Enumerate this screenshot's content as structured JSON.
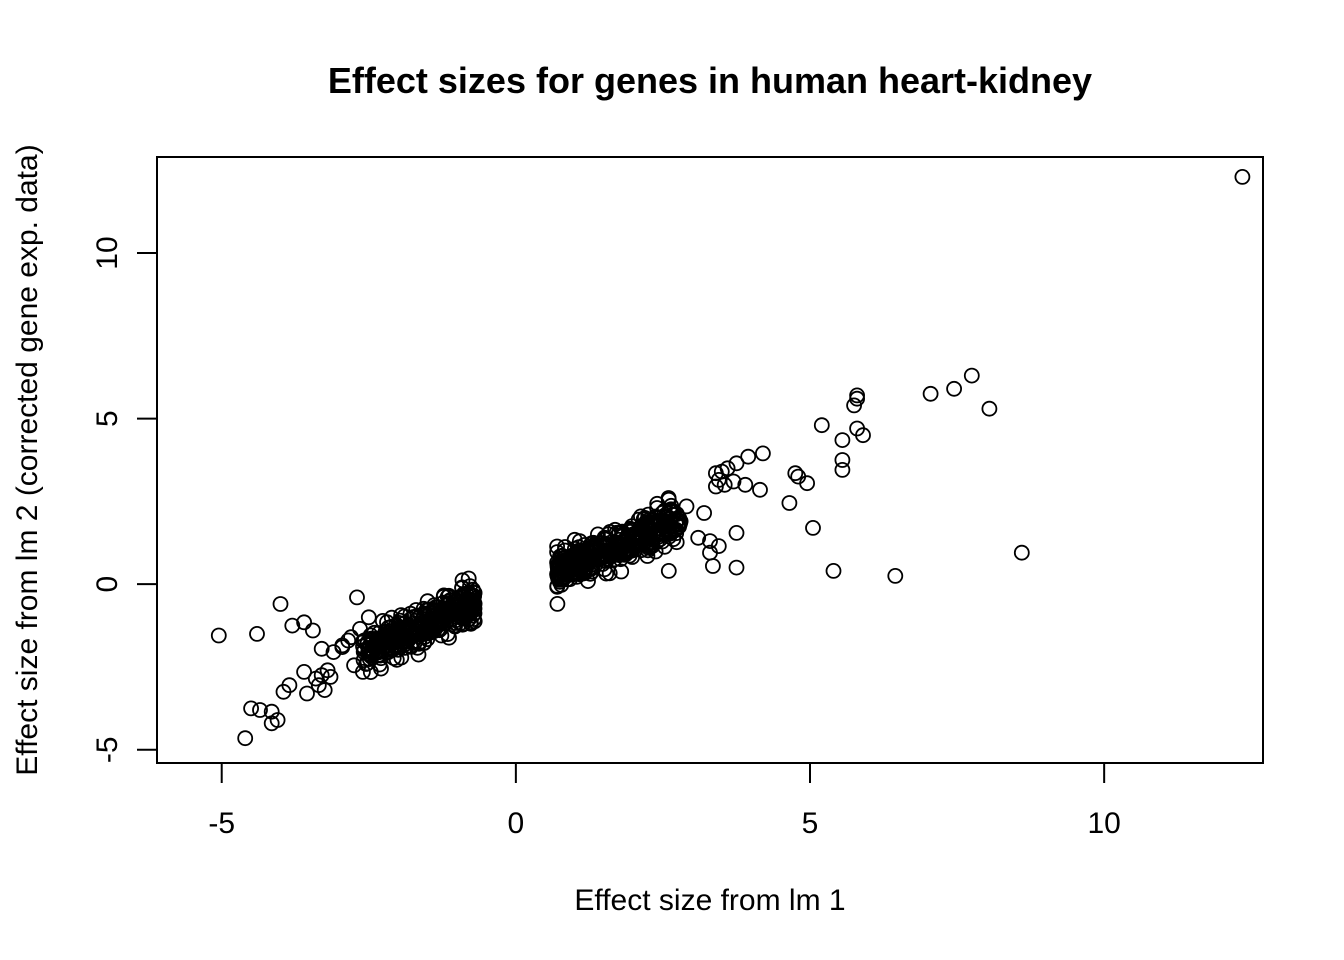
{
  "chart_data": {
    "type": "scatter",
    "title": "Effect sizes for genes in human heart-kidney",
    "xlabel": "Effect size from lm 1",
    "ylabel": "Effect size from lm 2 (corrected gene exp. data)",
    "xlim": [
      -6.1,
      12.7
    ],
    "ylim": [
      -5.4,
      12.9
    ],
    "x_ticks": [
      -5,
      0,
      5,
      10
    ],
    "y_ticks": [
      -5,
      0,
      5,
      10
    ],
    "x_tick_labels": [
      "-5",
      "0",
      "5",
      "10"
    ],
    "y_tick_labels": [
      "-5",
      "0",
      "5",
      "10"
    ],
    "grid": false,
    "marker": "open-circle",
    "points": {
      "x": [
        12.35,
        7.75,
        7.45,
        7.05,
        8.05,
        5.8,
        5.8,
        5.75,
        5.2,
        5.55,
        5.9,
        5.8,
        5.55,
        5.55,
        4.2,
        3.95,
        3.75,
        3.6,
        3.5,
        3.4,
        3.45,
        3.55,
        3.7,
        3.4,
        3.9,
        4.15,
        4.65,
        4.75,
        4.8,
        4.95,
        5.05,
        3.75,
        3.75,
        3.3,
        3.45,
        3.1,
        3.2,
        2.9,
        2.8,
        2.6,
        2.55,
        2.4,
        2.25,
        2.15,
        3.35,
        3.3,
        2.6,
        5.4,
        6.45,
        8.6,
        -5.05,
        -4.4,
        -4.0,
        -3.8,
        -3.6,
        -3.45,
        -3.3,
        -3.1,
        -2.95,
        -2.8,
        -2.65,
        -2.5,
        -3.6,
        -3.4,
        -3.2,
        -3.85,
        -3.95,
        -4.15,
        -4.35,
        -4.5,
        -4.05,
        -4.15,
        -4.6,
        -3.55,
        -3.35,
        -3.25,
        -3.15,
        -3.3,
        -2.75,
        -2.6,
        -2.45,
        -2.85,
        -2.95,
        -2.7
      ],
      "y": [
        12.3,
        6.3,
        5.9,
        5.75,
        5.3,
        5.7,
        5.6,
        5.4,
        4.8,
        4.35,
        4.5,
        4.7,
        3.75,
        3.45,
        3.95,
        3.85,
        3.65,
        3.5,
        3.4,
        3.35,
        3.15,
        3.0,
        3.1,
        2.95,
        3.0,
        2.85,
        2.45,
        3.35,
        3.25,
        3.05,
        1.7,
        1.55,
        0.5,
        1.3,
        1.15,
        1.4,
        2.15,
        2.35,
        1.9,
        2.55,
        1.75,
        2.3,
        2.1,
        1.2,
        0.55,
        0.95,
        0.4,
        0.4,
        0.25,
        0.95,
        -1.55,
        -1.5,
        -0.6,
        -1.25,
        -1.15,
        -1.4,
        -1.95,
        -2.05,
        -1.9,
        -1.6,
        -1.35,
        -1.0,
        -2.65,
        -2.85,
        -2.6,
        -3.05,
        -3.25,
        -3.85,
        -3.8,
        -3.75,
        -4.1,
        -4.2,
        -4.65,
        -3.3,
        -3.05,
        -3.2,
        -2.8,
        -2.75,
        -2.45,
        -2.65,
        -2.2,
        -1.7,
        -1.85,
        -0.4
      ]
    },
    "clusters": [
      {
        "x_range": [
          0.7,
          2.8
        ],
        "center": [
          1.4,
          0.9
        ],
        "slope": 0.75,
        "count": 380,
        "spread": 0.28
      },
      {
        "x_range": [
          -2.6,
          -0.7
        ],
        "center": [
          -1.35,
          -1.1
        ],
        "slope": 0.75,
        "count": 380,
        "spread": 0.28
      }
    ]
  }
}
